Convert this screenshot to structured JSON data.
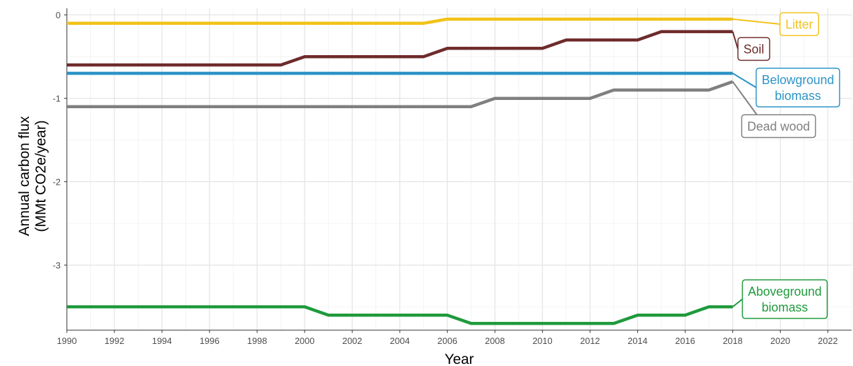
{
  "chart_data": {
    "type": "line",
    "xlabel": "Year",
    "ylabel": [
      "Annual carbon flux",
      "(MMt CO2e/year)"
    ],
    "xlim": [
      1990,
      2023
    ],
    "ylim": [
      -3.78,
      0.08
    ],
    "x_ticks": [
      1990,
      1992,
      1994,
      1996,
      1998,
      2000,
      2002,
      2004,
      2006,
      2008,
      2010,
      2012,
      2014,
      2016,
      2018,
      2020,
      2022
    ],
    "y_ticks": [
      0,
      -1,
      -2,
      -3
    ],
    "y_tick_labels": [
      "0",
      "-1",
      "-2",
      "-3"
    ],
    "grid": true,
    "legend": "direct labels at right end of each line",
    "series": [
      {
        "name": "Litter",
        "label_lines": [
          "Litter"
        ],
        "color": "#f2c218",
        "x": [
          1990,
          2005,
          2006,
          2018
        ],
        "y": [
          -0.1,
          -0.1,
          -0.05,
          -0.05
        ]
      },
      {
        "name": "Soil",
        "label_lines": [
          "Soil"
        ],
        "color": "#6e2b2b",
        "x": [
          1990,
          1999,
          2000,
          2005,
          2006,
          2010,
          2011,
          2014,
          2015,
          2018
        ],
        "y": [
          -0.6,
          -0.6,
          -0.5,
          -0.5,
          -0.4,
          -0.4,
          -0.3,
          -0.3,
          -0.2,
          -0.2
        ]
      },
      {
        "name": "Belowground biomass",
        "label_lines": [
          "Belowground",
          "biomass"
        ],
        "color": "#2b93c5",
        "x": [
          1990,
          2018
        ],
        "y": [
          -0.7,
          -0.7
        ]
      },
      {
        "name": "Dead wood",
        "label_lines": [
          "Dead wood"
        ],
        "color": "#7f7f7f",
        "x": [
          1990,
          2007,
          2008,
          2012,
          2013,
          2017,
          2018
        ],
        "y": [
          -1.1,
          -1.1,
          -1.0,
          -1.0,
          -0.9,
          -0.9,
          -0.8
        ]
      },
      {
        "name": "Aboveground biomass",
        "label_lines": [
          "Aboveground",
          "biomass"
        ],
        "color": "#1f9a3c",
        "x": [
          1990,
          2000,
          2001,
          2006,
          2007,
          2013,
          2014,
          2016,
          2017,
          2018
        ],
        "y": [
          -3.5,
          -3.5,
          -3.6,
          -3.6,
          -3.7,
          -3.7,
          -3.6,
          -3.6,
          -3.5,
          -3.5
        ]
      }
    ]
  }
}
